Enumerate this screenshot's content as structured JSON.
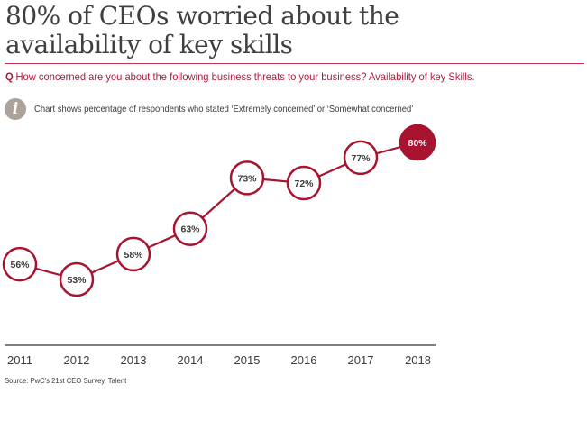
{
  "header": {
    "title_line1": "80% of CEOs worried about the",
    "title_line2": "availability of key skills",
    "question_marker": "Q",
    "question": "How concerned are you about the following business threats to your business? Availability of key Skills.",
    "info_icon": "info-icon",
    "note": "Chart shows percentage of respondents who stated ‘Extremely concerned’ or ‘Somewhat concerned’"
  },
  "colors": {
    "accent": "#a8132f",
    "title": "#3f3f3f",
    "text": "#3b3b3b",
    "axis": "#555555",
    "info_icon": "#aba39b"
  },
  "chart_data": {
    "type": "line",
    "title": "80% of CEOs worried about the availability of key skills",
    "xlabel": "",
    "ylabel": "",
    "categories": [
      "2011",
      "2012",
      "2013",
      "2014",
      "2015",
      "2016",
      "2017",
      "2018"
    ],
    "values": [
      56,
      53,
      58,
      63,
      73,
      72,
      77,
      80
    ],
    "data_labels": [
      "56%",
      "53%",
      "58%",
      "63%",
      "73%",
      "72%",
      "77%",
      "80%"
    ],
    "highlight_index": 7,
    "ylim": [
      45,
      84
    ],
    "grid": false,
    "legend": "none"
  },
  "source": "Source: PwC’s 21st CEO Survey, Talent"
}
